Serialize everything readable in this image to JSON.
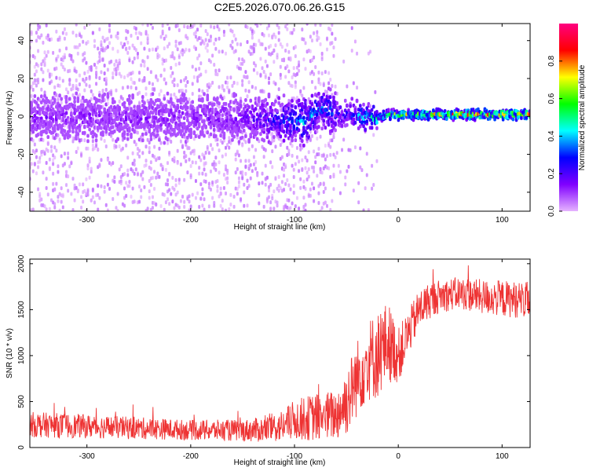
{
  "chart_data": [
    {
      "type": "heatmap",
      "title": "C2E5.2026.070.06.26.G15",
      "xlabel": "Height of straight line (km)",
      "ylabel": "Frequency (Hz)",
      "xlim": [
        -355,
        127
      ],
      "ylim": [
        -50,
        49
      ],
      "xticks": [
        -300,
        -200,
        -100,
        0,
        100
      ],
      "xtick_labels": [
        "-300",
        "-200",
        "-100",
        "0",
        "100"
      ],
      "yticks": [
        -40,
        -20,
        0,
        20,
        40
      ],
      "ytick_labels": [
        "-40",
        "-20",
        "0",
        "20",
        "40"
      ],
      "colorbar": {
        "label": "Normalized spectral amplitude",
        "range": [
          0,
          1
        ],
        "ticks": [
          0.0,
          0.2,
          0.4,
          0.6,
          0.8
        ],
        "tick_labels": [
          "0.0",
          "0.2",
          "0.4",
          "0.6",
          "0.8"
        ],
        "colors": [
          "#e6b3ff",
          "#8000ff",
          "#0000ff",
          "#00ffff",
          "#00ff00",
          "#ffff00",
          "#ff0000",
          "#ff0080"
        ]
      },
      "ridge": {
        "x": [
          -355,
          -300,
          -250,
          -200,
          -150,
          -100,
          -90,
          -80,
          -70,
          -60,
          -50,
          -40,
          -30,
          -20,
          -10,
          0,
          20,
          50,
          80,
          100,
          127
        ],
        "center_hz": [
          -1,
          0,
          -1,
          0,
          -1,
          -2,
          -3,
          3,
          5,
          1,
          1,
          1,
          -1,
          -1,
          1,
          1,
          1,
          1,
          1,
          1,
          1
        ],
        "amplitude": [
          0.15,
          0.15,
          0.15,
          0.15,
          0.18,
          0.35,
          0.45,
          0.4,
          0.35,
          0.3,
          0.3,
          0.4,
          0.5,
          0.55,
          0.75,
          0.7,
          0.7,
          0.9,
          0.85,
          0.85,
          0.88
        ]
      }
    },
    {
      "type": "line",
      "xlabel": "Height of straight line (km)",
      "ylabel": "SNR (10 * v/v)",
      "xlim": [
        -355,
        127
      ],
      "ylim": [
        0,
        2050
      ],
      "xticks": [
        -300,
        -200,
        -100,
        0,
        100
      ],
      "xtick_labels": [
        "-300",
        "-200",
        "-100",
        "0",
        "100"
      ],
      "yticks": [
        0,
        500,
        1000,
        1500,
        2000
      ],
      "ytick_labels": [
        "0",
        "500",
        "1000",
        "1500",
        "2000"
      ],
      "color": "#ee3333",
      "series": [
        {
          "name": "SNR",
          "x": [
            -355,
            -300,
            -250,
            -200,
            -150,
            -130,
            -110,
            -100,
            -80,
            -60,
            -50,
            -40,
            -30,
            -20,
            -10,
            0,
            10,
            20,
            30,
            40,
            60,
            80,
            100,
            127
          ],
          "mean": [
            250,
            230,
            210,
            190,
            185,
            195,
            240,
            300,
            330,
            350,
            500,
            750,
            950,
            1000,
            1150,
            1000,
            1250,
            1500,
            1600,
            1650,
            1680,
            1640,
            1620,
            1600
          ],
          "spread": [
            140,
            130,
            120,
            110,
            120,
            140,
            180,
            220,
            260,
            280,
            380,
            420,
            450,
            480,
            450,
            300,
            250,
            220,
            200,
            180,
            180,
            190,
            200,
            200
          ]
        }
      ]
    }
  ]
}
